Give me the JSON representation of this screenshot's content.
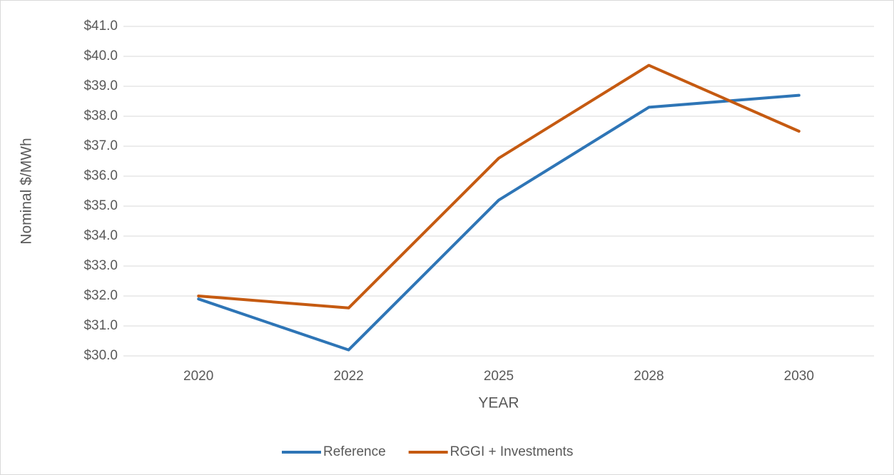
{
  "chart_data": {
    "type": "line",
    "y_label": "Nominal $/MWh",
    "x_label": "YEAR",
    "categories": [
      "2020",
      "2022",
      "2025",
      "2028",
      "2030"
    ],
    "series": [
      {
        "name": "Reference",
        "color": "#2e75b6",
        "values": [
          31.9,
          30.2,
          35.2,
          38.3,
          38.7
        ]
      },
      {
        "name": "RGGI + Investments",
        "color": "#c55a11",
        "values": [
          32.0,
          31.6,
          36.6,
          39.7,
          37.5
        ]
      }
    ],
    "ylim": [
      30,
      41
    ],
    "yticks": [
      {
        "value": 30,
        "label": "$30.0"
      },
      {
        "value": 31,
        "label": "$31.0"
      },
      {
        "value": 32,
        "label": "$32.0"
      },
      {
        "value": 33,
        "label": "$33.0"
      },
      {
        "value": 34,
        "label": "$34.0"
      },
      {
        "value": 35,
        "label": "$35.0"
      },
      {
        "value": 36,
        "label": "$36.0"
      },
      {
        "value": 37,
        "label": "$37.0"
      },
      {
        "value": 38,
        "label": "$38.0"
      },
      {
        "value": 39,
        "label": "$39.0"
      },
      {
        "value": 40,
        "label": "$40.0"
      },
      {
        "value": 41,
        "label": "$41.0"
      }
    ],
    "grid": true,
    "legend": "bottom"
  }
}
